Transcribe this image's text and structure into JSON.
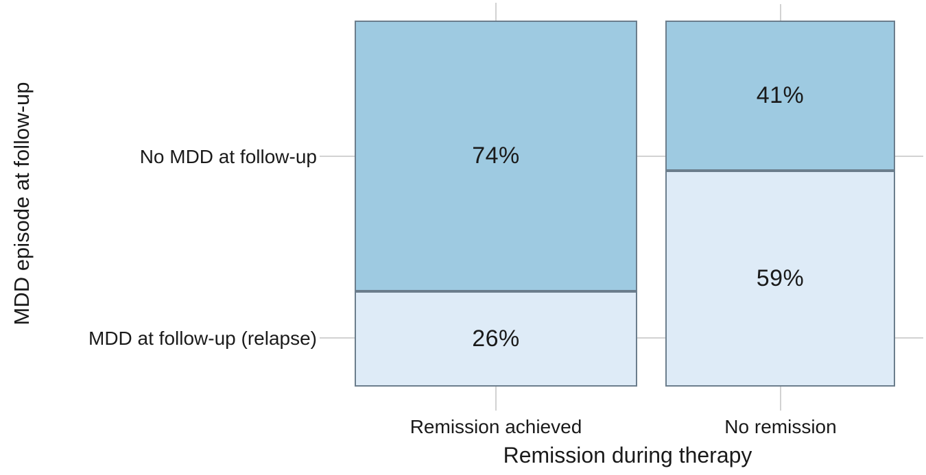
{
  "chart_data": {
    "type": "mosaic",
    "title": "",
    "xlabel": "Remission during therapy",
    "ylabel": "MDD episode at follow-up",
    "x_categories": [
      "Remission achieved",
      "No remission"
    ],
    "y_categories": [
      "No MDD at follow-up",
      "MDD at follow-up (relapse)"
    ],
    "columns": [
      {
        "category": "Remission achieved",
        "column_width_share": 0.55,
        "segments": [
          {
            "category": "No MDD at follow-up",
            "value_pct": 74,
            "label": "74%",
            "color": "#9ecae1"
          },
          {
            "category": "MDD at follow-up (relapse)",
            "value_pct": 26,
            "label": "26%",
            "color": "#deebf7"
          }
        ]
      },
      {
        "category": "No remission",
        "column_width_share": 0.45,
        "segments": [
          {
            "category": "No MDD at follow-up",
            "value_pct": 41,
            "label": "41%",
            "color": "#9ecae1"
          },
          {
            "category": "MDD at follow-up (relapse)",
            "value_pct": 59,
            "label": "59%",
            "color": "#deebf7"
          }
        ]
      }
    ],
    "colors": {
      "no_mdd_fill": "#9ecae1",
      "mdd_relapse_fill": "#deebf7",
      "segment_border": "#6b7d8c",
      "gridline": "#d2d2d2",
      "text": "#1a1a1a",
      "background": "#ffffff"
    },
    "layout": {
      "legend": "none",
      "grid": "category tick marks only, outside panel and in column gap",
      "ylim": [
        0,
        1
      ],
      "orientation": "stacked proportions per column"
    }
  }
}
